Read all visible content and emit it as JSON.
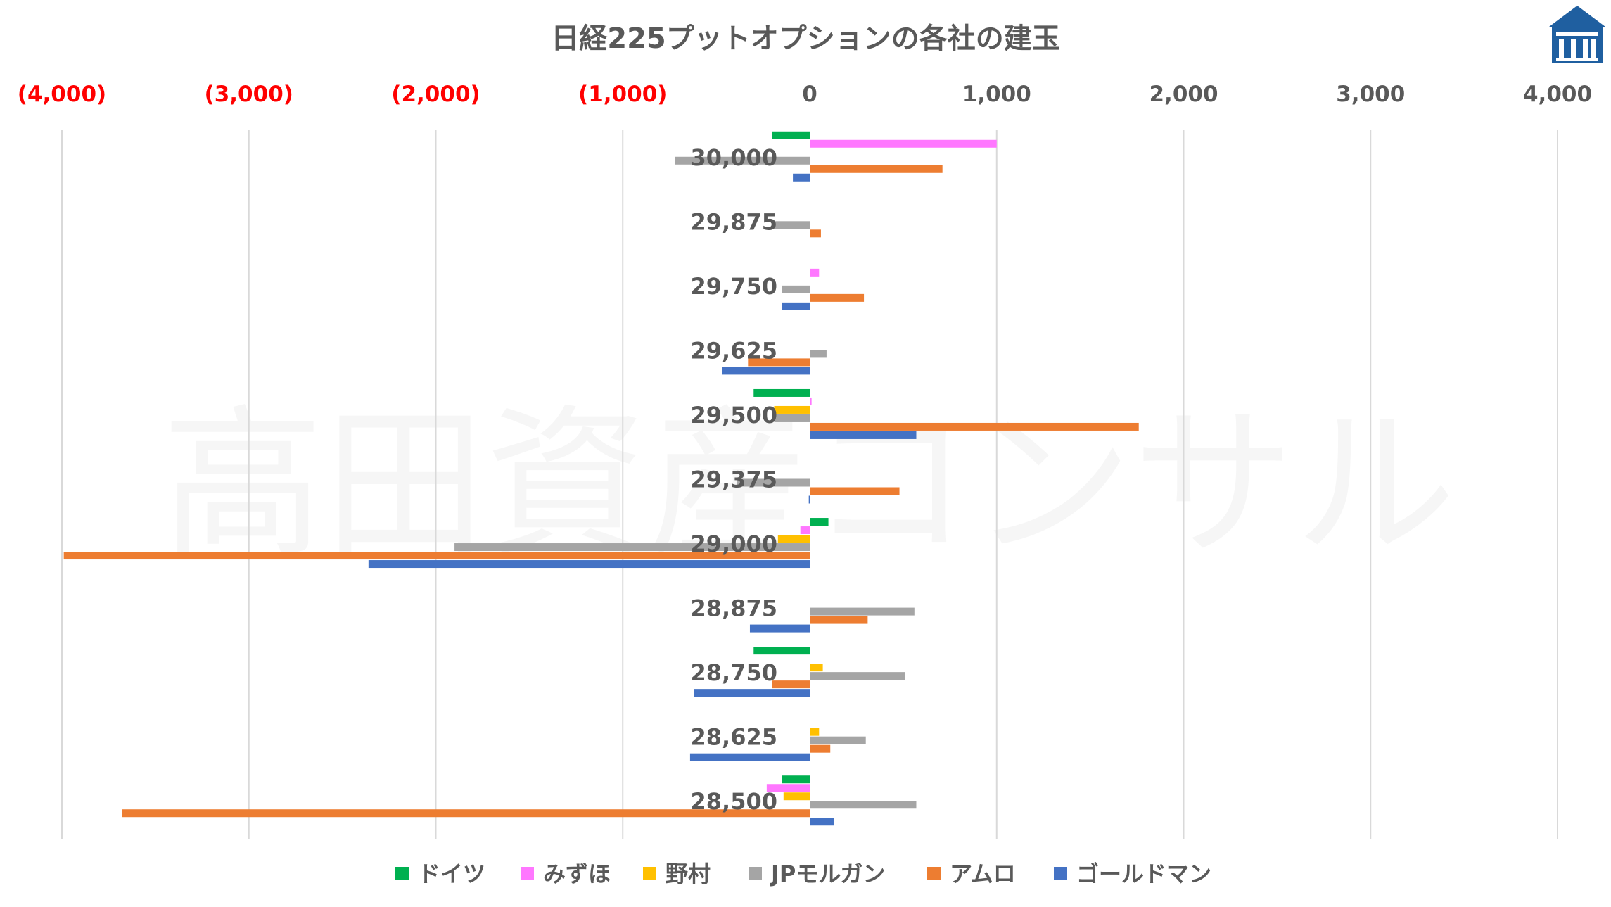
{
  "chart_data": {
    "type": "bar",
    "orientation": "horizontal",
    "title": "日経225プットオプションの各社の建玉",
    "categories": [
      "30,000",
      "29,875",
      "29,750",
      "29,625",
      "29,500",
      "29,375",
      "29,000",
      "28,875",
      "28,750",
      "28,625",
      "28,500"
    ],
    "xlim": [
      -4000,
      4000
    ],
    "x_ticks": [
      {
        "value": -4000,
        "label": "(4,000)",
        "color": "#FF0000"
      },
      {
        "value": -3000,
        "label": "(3,000)",
        "color": "#FF0000"
      },
      {
        "value": -2000,
        "label": "(2,000)",
        "color": "#FF0000"
      },
      {
        "value": -1000,
        "label": "(1,000)",
        "color": "#FF0000"
      },
      {
        "value": 0,
        "label": "0",
        "color": "#595959"
      },
      {
        "value": 1000,
        "label": "1,000",
        "color": "#595959"
      },
      {
        "value": 2000,
        "label": "2,000",
        "color": "#595959"
      },
      {
        "value": 3000,
        "label": "3,000",
        "color": "#595959"
      },
      {
        "value": 4000,
        "label": "4,000",
        "color": "#595959"
      }
    ],
    "grid": "vertical",
    "legend_position": "bottom",
    "series": [
      {
        "name": "ドイツ",
        "color": "#00B050",
        "values": [
          -200,
          0,
          0,
          0,
          -300,
          0,
          100,
          0,
          -300,
          0,
          -150
        ]
      },
      {
        "name": "みずほ",
        "color": "#FF77FF",
        "values": [
          1000,
          0,
          50,
          0,
          10,
          0,
          -50,
          0,
          0,
          0,
          -230
        ]
      },
      {
        "name": "野村",
        "color": "#FFC000",
        "values": [
          0,
          0,
          0,
          0,
          -190,
          0,
          -170,
          0,
          70,
          50,
          -140
        ]
      },
      {
        "name": "JPモルガン",
        "color": "#A5A5A5",
        "values": [
          -720,
          -200,
          -150,
          90,
          -190,
          -390,
          -1900,
          560,
          510,
          300,
          570
        ]
      },
      {
        "name": "アムロ",
        "color": "#ED7D31",
        "values": [
          710,
          60,
          290,
          -330,
          1760,
          480,
          -3990,
          310,
          -200,
          110,
          -3680
        ]
      },
      {
        "name": "ゴールドマン",
        "color": "#4472C4",
        "values": [
          -90,
          0,
          -150,
          -470,
          570,
          -5,
          -2360,
          -320,
          -620,
          -640,
          130
        ]
      }
    ]
  },
  "watermark": "高田資産コンサル",
  "logo": {
    "icon": "institution-building-logo",
    "color": "#1F5FA0"
  }
}
